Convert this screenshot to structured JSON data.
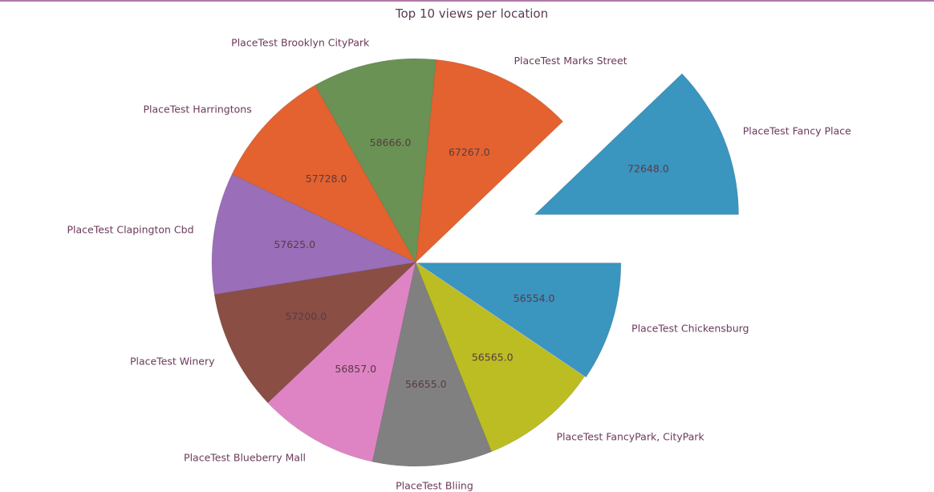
{
  "chart_data": {
    "type": "pie",
    "title": "Top 10 views per location",
    "categories": [
      "PlaceTest Fancy Place",
      "PlaceTest Marks Street",
      "PlaceTest Brooklyn CityPark",
      "PlaceTest Harringtons",
      "PlaceTest Clapington Cbd",
      "PlaceTest Winery",
      "PlaceTest Blueberry Mall",
      "PlaceTest Bliing",
      "PlaceTest FancyPark, CityPark",
      "PlaceTest Chickensburg"
    ],
    "values": [
      72648,
      67267,
      58666,
      57728,
      57625,
      57200,
      56857,
      56655,
      56565,
      56554
    ],
    "value_labels": [
      "72648.0",
      "67267.0",
      "58666.0",
      "57728.0",
      "57625.0",
      "57200.0",
      "56857.0",
      "56655.0",
      "56565.0",
      "56554.0"
    ],
    "colors": [
      "#3a95bf",
      "#e3622f",
      "#6a9254",
      "#e3622f",
      "#9a6eb8",
      "#8a4e44",
      "#de84c4",
      "#808080",
      "#bcbd22",
      "#3a95bf"
    ],
    "exploded": [
      "PlaceTest Fancy Place",
      "PlaceTest Chickensburg"
    ],
    "start_angle_deg": 0,
    "direction": "counterclockwise"
  }
}
